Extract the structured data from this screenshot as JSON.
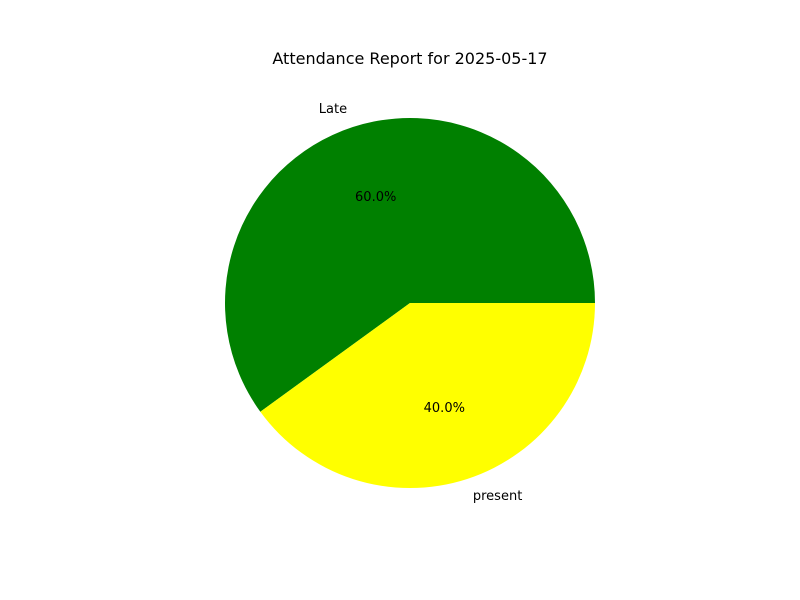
{
  "chart_data": {
    "type": "pie",
    "title": "Attendance Report for 2025-05-17",
    "categories": [
      "Late",
      "present"
    ],
    "values": [
      60,
      40
    ],
    "percent_labels": [
      "60.0%",
      "40.0%"
    ],
    "colors": [
      "#008000",
      "#ffff00"
    ],
    "legend": "none"
  }
}
